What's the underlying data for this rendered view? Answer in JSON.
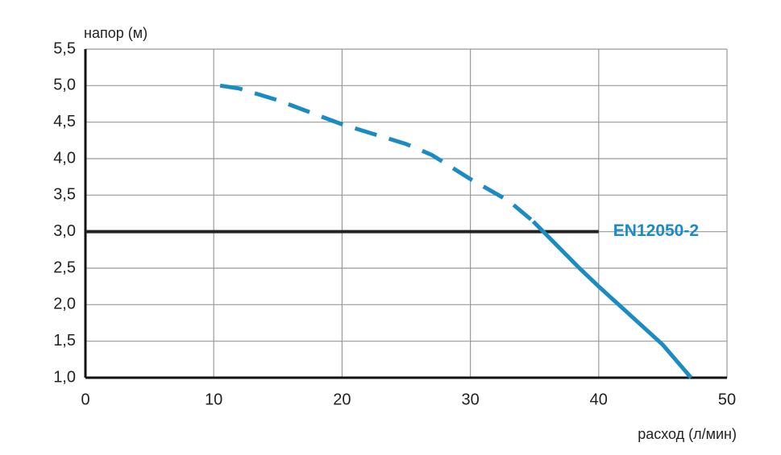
{
  "chart_data": {
    "type": "line",
    "y_label": "напор (м)",
    "x_label": "расход (л/мин)",
    "xlim": [
      0,
      50
    ],
    "xticks": [
      0,
      10,
      20,
      30,
      40,
      50
    ],
    "ylim": [
      1.0,
      5.5
    ],
    "yticks": [
      {
        "value": 1.0,
        "label": "1,0"
      },
      {
        "value": 1.5,
        "label": "1,5"
      },
      {
        "value": 2.0,
        "label": "2,0"
      },
      {
        "value": 2.5,
        "label": "2,5"
      },
      {
        "value": 3.0,
        "label": "3,0"
      },
      {
        "value": 3.5,
        "label": "3,5"
      },
      {
        "value": 4.0,
        "label": "4,0"
      },
      {
        "value": 4.5,
        "label": "4,5"
      },
      {
        "value": 5.0,
        "label": "5,0"
      },
      {
        "value": 5.5,
        "label": "5,5"
      }
    ],
    "grid": true,
    "series": [
      {
        "color": "#1a8bc4",
        "dashed": true,
        "x": [
          10.5,
          12,
          15,
          20,
          25,
          27,
          30,
          33,
          34.9
        ],
        "values": [
          5.0,
          4.96,
          4.8,
          4.47,
          4.2,
          4.05,
          3.72,
          3.42,
          3.14
        ]
      },
      {
        "color": "#1a8bc4",
        "dashed": false,
        "x": [
          34.9,
          38.5,
          40,
          45,
          47.2
        ],
        "values": [
          3.14,
          2.5,
          2.25,
          1.45,
          1.0
        ]
      }
    ],
    "reference_line": {
      "label": "EN12050-2",
      "y": 3.0,
      "x_end": 40,
      "color": "#222222",
      "label_color": "#1a8bc4"
    }
  }
}
